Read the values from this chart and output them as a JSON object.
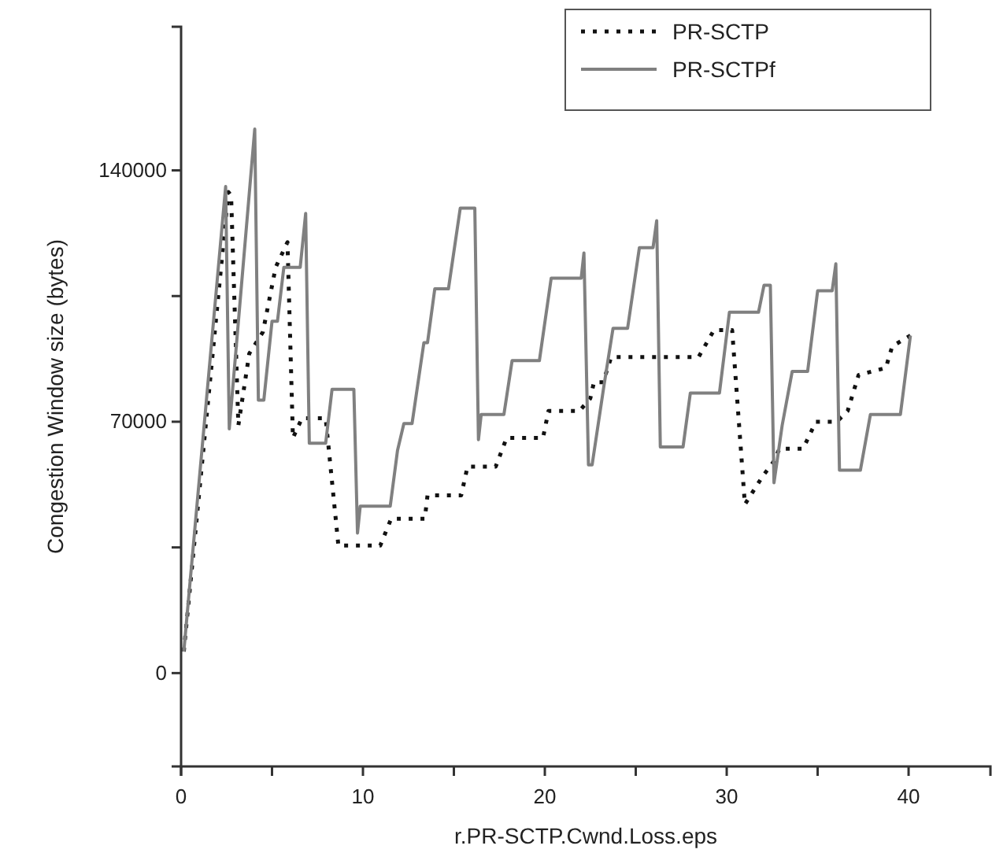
{
  "chart_data": {
    "type": "line",
    "xlabel": "r.PR-SCTP.Cwnd.Loss.eps",
    "ylabel": "Congestion Window size (bytes)",
    "xlim": [
      0,
      44.5
    ],
    "ylim": [
      -26000,
      180000
    ],
    "xticks": [
      0,
      {
        "value": 5,
        "label": null
      },
      10,
      {
        "value": 15,
        "label": null
      },
      20,
      {
        "value": 25,
        "label": null
      },
      30,
      {
        "value": 35,
        "label": null
      },
      40
    ],
    "yticks": [
      0,
      {
        "value": 35000,
        "label": null
      },
      70000,
      {
        "value": 105000,
        "label": null
      },
      140000
    ],
    "legend": "top right",
    "grid": false,
    "marker": "none",
    "series": [
      {
        "name": "PR-SCTP",
        "color": "#111111",
        "line_style": "dotted",
        "x": [
          0.15,
          2.6,
          2.75,
          3.15,
          3.75,
          4.5,
          5.2,
          5.85,
          6.15,
          6.65,
          7.95,
          8.65,
          10.95,
          11.55,
          13.4,
          13.55,
          15.4,
          15.75,
          17.3,
          17.9,
          19.9,
          20.2,
          21.9,
          22.5,
          22.7,
          23.2,
          23.65,
          28.45,
          29.3,
          30.3,
          31.0,
          32.0,
          32.6,
          32.9,
          34.2,
          34.9,
          36.05,
          36.65,
          37.25,
          38.75,
          39.1,
          40.1
        ],
        "values": [
          6000,
          134000,
          133000,
          69000,
          89000,
          95000,
          113000,
          120000,
          65500,
          71000,
          71000,
          35500,
          35500,
          43000,
          43000,
          49500,
          49500,
          57500,
          57500,
          65500,
          65500,
          73000,
          73000,
          76500,
          81000,
          81000,
          88000,
          88000,
          95500,
          95500,
          47000,
          55000,
          59000,
          62500,
          62500,
          70000,
          70000,
          73000,
          83000,
          85000,
          91000,
          94000
        ]
      },
      {
        "name": "PR-SCTPf",
        "color": "#808080",
        "line_style": "solid",
        "x": [
          0.15,
          2.45,
          2.65,
          4.05,
          4.25,
          4.55,
          5.0,
          5.3,
          5.65,
          6.55,
          6.85,
          7.05,
          7.95,
          8.3,
          9.5,
          9.7,
          9.85,
          11.5,
          11.9,
          12.25,
          12.7,
          13.35,
          13.55,
          13.95,
          14.7,
          15.35,
          16.15,
          16.35,
          16.5,
          17.75,
          18.2,
          19.7,
          20.35,
          22.0,
          22.15,
          22.4,
          22.6,
          23.25,
          23.75,
          24.55,
          25.2,
          25.95,
          26.15,
          26.35,
          27.6,
          28.0,
          29.6,
          30.15,
          31.75,
          32.05,
          32.4,
          32.6,
          33.05,
          33.6,
          34.45,
          35.0,
          35.8,
          36.0,
          36.2,
          37.35,
          37.9,
          39.55,
          40.1
        ],
        "values": [
          6000,
          135500,
          68000,
          151500,
          76000,
          76000,
          98000,
          98000,
          113000,
          113000,
          128000,
          64000,
          64000,
          79000,
          79000,
          39000,
          46500,
          46500,
          62000,
          69500,
          69500,
          92000,
          92000,
          107000,
          107000,
          129500,
          129500,
          65000,
          72000,
          72000,
          87000,
          87000,
          110000,
          110000,
          117000,
          58000,
          58000,
          80000,
          96000,
          96000,
          118500,
          118500,
          126000,
          63000,
          63000,
          78000,
          78000,
          100500,
          100500,
          108000,
          108000,
          53000,
          69000,
          84000,
          84000,
          106500,
          106500,
          114000,
          56500,
          56500,
          72000,
          72000,
          94000
        ]
      }
    ]
  }
}
